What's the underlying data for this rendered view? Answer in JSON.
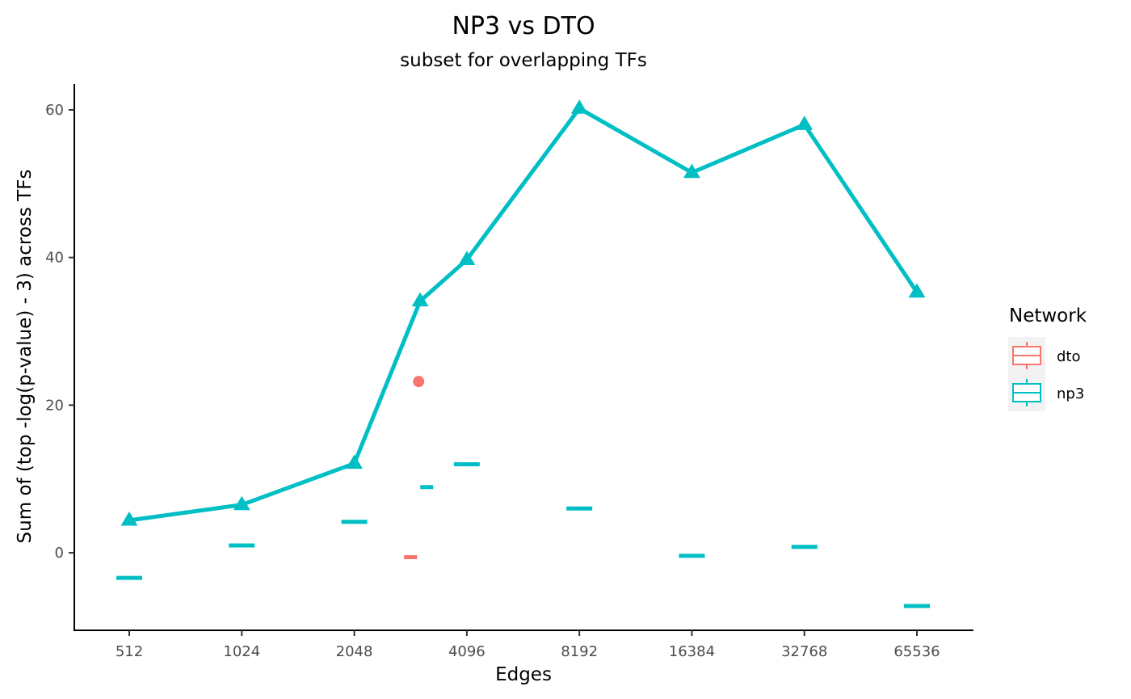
{
  "chart_data": {
    "type": "line",
    "title": "NP3 vs DTO",
    "subtitle": "subset for overlapping TFs",
    "xlabel": "Edges",
    "ylabel": "Sum of (top -log(p-value) - 3) across TFs",
    "x_scale": "log2",
    "x_ticks": [
      "512",
      "1024",
      "2048",
      "4096",
      "8192",
      "16384",
      "32768",
      "65536"
    ],
    "y_ticks": [
      "0",
      "20",
      "40",
      "60"
    ],
    "ylim": [
      -10.5,
      63.5
    ],
    "grid": false,
    "legend": {
      "title": "Network",
      "position": "right",
      "entries": [
        {
          "label": "dto",
          "color": "#F8766D"
        },
        {
          "label": "np3",
          "color": "#00BFC4"
        }
      ]
    },
    "series": [
      {
        "name": "np3",
        "color": "#00BFC4",
        "marker": "triangle",
        "points": [
          {
            "x": 512,
            "y": 4.4
          },
          {
            "x": 1024,
            "y": 6.5
          },
          {
            "x": 2048,
            "y": 12.1
          },
          {
            "x": 3072,
            "y": 34.1
          },
          {
            "x": 4096,
            "y": 39.7
          },
          {
            "x": 8192,
            "y": 60.2
          },
          {
            "x": 16384,
            "y": 51.5
          },
          {
            "x": 32768,
            "y": 58.0
          },
          {
            "x": 65536,
            "y": 35.3
          }
        ]
      }
    ],
    "boxplots": [
      {
        "group": "dto",
        "color": "#F8766D",
        "x": 2896,
        "median": -0.6,
        "outliers": [
          23.2
        ]
      },
      {
        "group": "np3",
        "color": "#00BFC4",
        "x": 512,
        "median": -3.4,
        "outliers": []
      },
      {
        "group": "np3",
        "color": "#00BFC4",
        "x": 1024,
        "median": 1.0,
        "outliers": []
      },
      {
        "group": "np3",
        "color": "#00BFC4",
        "x": 2048,
        "median": 4.2,
        "outliers": []
      },
      {
        "group": "np3",
        "color": "#00BFC4",
        "x": 3200,
        "median": 8.9,
        "outliers": []
      },
      {
        "group": "np3",
        "color": "#00BFC4",
        "x": 4096,
        "median": 12.0,
        "outliers": []
      },
      {
        "group": "np3",
        "color": "#00BFC4",
        "x": 8192,
        "median": 6.0,
        "outliers": []
      },
      {
        "group": "np3",
        "color": "#00BFC4",
        "x": 16384,
        "median": -0.4,
        "outliers": []
      },
      {
        "group": "np3",
        "color": "#00BFC4",
        "x": 32768,
        "median": 0.8,
        "outliers": []
      },
      {
        "group": "np3",
        "color": "#00BFC4",
        "x": 65536,
        "median": -7.2,
        "outliers": []
      }
    ]
  }
}
